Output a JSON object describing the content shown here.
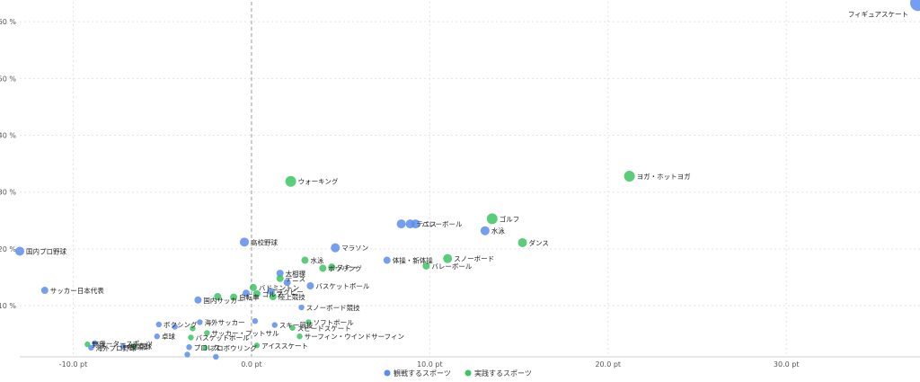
{
  "chart_data": {
    "type": "scatter",
    "title": "",
    "xlabel": "",
    "ylabel": "",
    "xlim": [
      -13.0,
      37.5
    ],
    "ylim": [
      1.0,
      63.5
    ],
    "x_ticks": [
      -10,
      0,
      10,
      20,
      30
    ],
    "x_tick_labels": [
      "-10.0 pt",
      "0.0 pt",
      "10.0 pt",
      "20.0 pt",
      "30.0 pt"
    ],
    "y_ticks": [
      10,
      20,
      30,
      40,
      50,
      60
    ],
    "y_tick_labels": [
      "10 %",
      "20 %",
      "30 %",
      "40 %",
      "50 %",
      "60 %"
    ],
    "grid": true,
    "zero_line": "dashed vertical at x = 0",
    "legend_placement": "bottom-center",
    "colors": {
      "watch": "#5b8def",
      "play": "#3cc463"
    },
    "series": [
      {
        "name": "観戦するスポーツ",
        "color": "#5b8def",
        "points": [
          {
            "label": "フィギュアスケート",
            "x": 37.4,
            "y": 63.3
          },
          {
            "label": "国内プロ野球",
            "x": -13.0,
            "y": 19.6
          },
          {
            "label": "高校野球",
            "x": -0.4,
            "y": 21.2
          },
          {
            "label": "マラソン",
            "x": 4.7,
            "y": 20.2
          },
          {
            "label": "",
            "x": 8.4,
            "y": 24.4
          },
          {
            "label": "バレーボール",
            "x": 9.2,
            "y": 24.4
          },
          {
            "label": "テニス",
            "x": 8.9,
            "y": 24.4
          },
          {
            "label": "水泳",
            "x": 13.1,
            "y": 23.2
          },
          {
            "label": "体操・新体操",
            "x": 7.6,
            "y": 18.0
          },
          {
            "label": "サッカー日本代表",
            "x": -11.6,
            "y": 12.7
          },
          {
            "label": "大相撲",
            "x": 1.6,
            "y": 15.7
          },
          {
            "label": "ラグビー",
            "x": 1.1,
            "y": 12.5
          },
          {
            "label": "",
            "x": 2.0,
            "y": 14.1
          },
          {
            "label": "バスケットボール",
            "x": 3.3,
            "y": 13.5
          },
          {
            "label": "",
            "x": -0.3,
            "y": 12.2
          },
          {
            "label": "国内サッカー",
            "x": -3.0,
            "y": 11.0
          },
          {
            "label": "スノーボード競技",
            "x": 2.8,
            "y": 9.7
          },
          {
            "label": "ボクシング",
            "x": -5.2,
            "y": 6.7
          },
          {
            "label": "",
            "x": -4.3,
            "y": 6.3
          },
          {
            "label": "卓球",
            "x": -5.3,
            "y": 4.6
          },
          {
            "label": "海外サッカー",
            "x": -2.9,
            "y": 7.1
          },
          {
            "label": "",
            "x": 0.2,
            "y": 7.3
          },
          {
            "label": "スキー競技",
            "x": 1.3,
            "y": 6.6
          },
          {
            "label": "モータースポーツ",
            "x": -8.8,
            "y": 3.4
          },
          {
            "label": "海外プロ野球",
            "x": -9.0,
            "y": 2.6
          },
          {
            "label": "格闘技",
            "x": -7.2,
            "y": 2.8
          },
          {
            "label": "プロレス",
            "x": -3.5,
            "y": 2.7
          },
          {
            "label": "",
            "x": -3.6,
            "y": 1.4
          },
          {
            "label": "",
            "x": -2.0,
            "y": 1.0
          }
        ]
      },
      {
        "name": "実践するスポーツ",
        "color": "#3cc463",
        "points": [
          {
            "label": "ヨガ・ホットヨガ",
            "x": 21.2,
            "y": 32.8
          },
          {
            "label": "ウォーキング",
            "x": 2.2,
            "y": 31.9
          },
          {
            "label": "ゴルフ",
            "x": 13.5,
            "y": 25.3
          },
          {
            "label": "ダンス",
            "x": 15.2,
            "y": 21.1
          },
          {
            "label": "スノーボード",
            "x": 11.0,
            "y": 18.3
          },
          {
            "label": "バレーボール",
            "x": 9.8,
            "y": 17.0
          },
          {
            "label": "水泳",
            "x": 3.0,
            "y": 18.0
          },
          {
            "label": "スキー",
            "x": 4.5,
            "y": 16.8
          },
          {
            "label": "ボウリング",
            "x": 4.0,
            "y": 16.6
          },
          {
            "label": "テニス",
            "x": 1.6,
            "y": 14.8
          },
          {
            "label": "バドミントン",
            "x": 0.1,
            "y": 13.2
          },
          {
            "label": "ゴルフ",
            "x": 0.3,
            "y": 12.1
          },
          {
            "label": "自転車",
            "x": -1.0,
            "y": 11.5
          },
          {
            "label": "",
            "x": -1.9,
            "y": 11.6
          },
          {
            "label": "陸上競技",
            "x": 1.2,
            "y": 11.6
          },
          {
            "label": "ソフトボール",
            "x": 3.2,
            "y": 7.1
          },
          {
            "label": "スピードスケート",
            "x": 2.3,
            "y": 6.1
          },
          {
            "label": "サーフィン・ウインドサーフィン",
            "x": 2.7,
            "y": 4.6
          },
          {
            "label": "サッカー・フットサル",
            "x": -2.5,
            "y": 5.2
          },
          {
            "label": "",
            "x": -3.3,
            "y": 6.0
          },
          {
            "label": "バスケットボール",
            "x": -3.4,
            "y": 4.4
          },
          {
            "label": "野球",
            "x": -9.2,
            "y": 3.2
          },
          {
            "label": "卓球",
            "x": -6.6,
            "y": 2.9
          },
          {
            "label": "アイススケート",
            "x": 0.3,
            "y": 3.0
          },
          {
            "label": "プロボウリング",
            "x": -2.6,
            "y": 2.6
          }
        ]
      }
    ]
  }
}
